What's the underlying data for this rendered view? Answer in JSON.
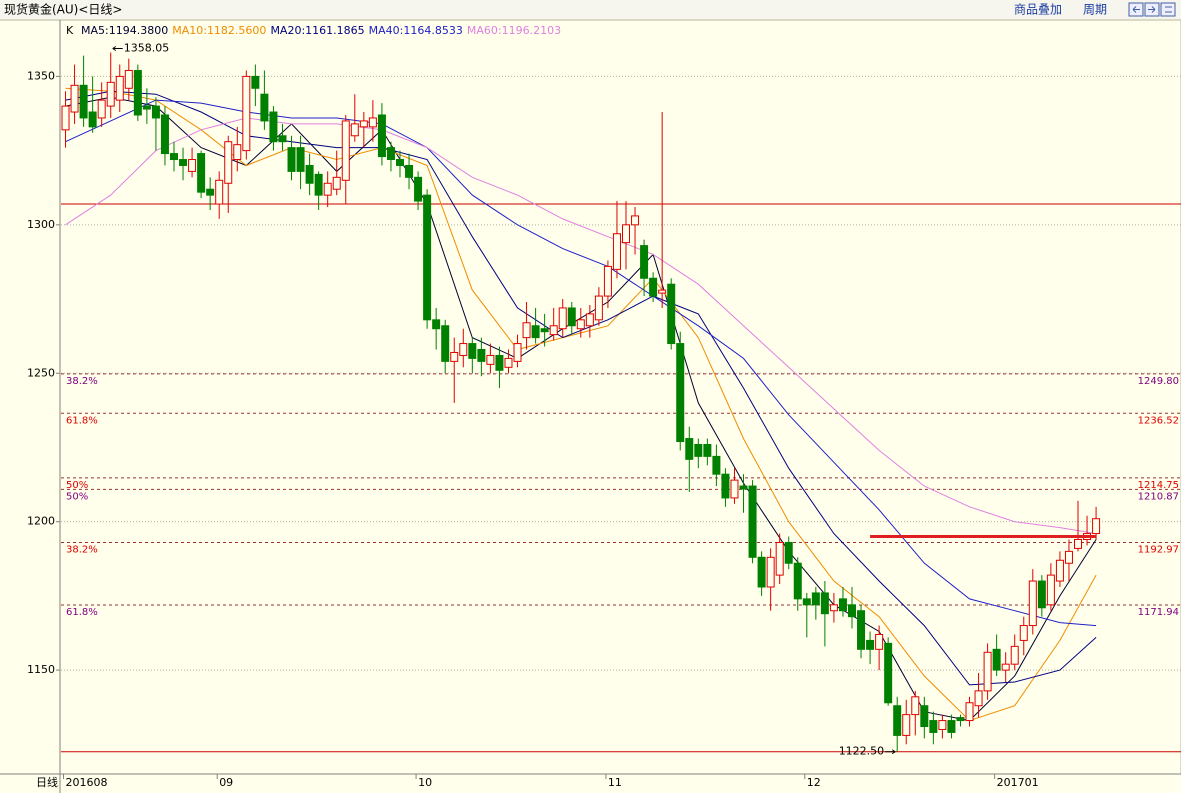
{
  "toolbar": {
    "title": "现货黄金(AU)<日线>",
    "buttons": [
      "商品叠加",
      "周期"
    ]
  },
  "chart_data": {
    "type": "candlestick",
    "k_label": "K",
    "period_label": "日线",
    "categories": [
      "201608",
      null,
      null,
      null,
      null,
      null,
      null,
      null,
      null,
      null,
      null,
      null,
      null,
      null,
      null,
      null,
      null,
      "09",
      null,
      null,
      null,
      null,
      null,
      null,
      null,
      null,
      null,
      null,
      null,
      null,
      null,
      null,
      null,
      null,
      null,
      null,
      null,
      null,
      null,
      "10",
      null,
      null,
      null,
      null,
      null,
      null,
      null,
      null,
      null,
      null,
      null,
      null,
      null,
      null,
      null,
      null,
      null,
      null,
      null,
      null,
      "11",
      null,
      null,
      null,
      null,
      null,
      null,
      null,
      null,
      null,
      null,
      null,
      null,
      null,
      null,
      null,
      null,
      null,
      null,
      null,
      null,
      null,
      "12",
      null,
      null,
      null,
      null,
      null,
      null,
      null,
      null,
      null,
      null,
      null,
      null,
      null,
      null,
      null,
      null,
      null,
      null,
      null,
      null,
      "201701",
      null,
      null,
      null,
      null,
      null,
      null,
      null,
      null,
      null,
      null,
      null
    ],
    "open": [
      1332,
      1338,
      1347,
      1338,
      1336,
      1340,
      1342,
      1346,
      1352,
      1340,
      1340,
      1337,
      1324,
      1322,
      1318,
      1324,
      1312,
      1307,
      1314,
      1322,
      1325,
      1350,
      1344,
      1338,
      1330,
      1326,
      1326,
      1320,
      1317,
      1310,
      1312,
      1315,
      1330,
      1333,
      1333,
      1337,
      1326,
      1322,
      1320,
      1316,
      1310,
      1268,
      1266,
      1254,
      1256,
      1260,
      1258,
      1253,
      1256,
      1252,
      1254,
      1262,
      1266,
      1265,
      1263,
      1265,
      1272,
      1265,
      1266,
      1268,
      1276,
      1285,
      1294,
      1300,
      1293,
      1282,
      1277,
      1280,
      1260,
      1228,
      1226,
      1226,
      1222,
      1216,
      1208,
      1212,
      1212,
      1188,
      1178,
      1182,
      1193,
      1186,
      1174,
      1176,
      1176,
      1170,
      1174,
      1172,
      1170,
      1160,
      1157,
      1159,
      1138,
      1128,
      1135,
      1138,
      1133,
      1130,
      1133,
      1134,
      1133,
      1138,
      1143,
      1157,
      1150,
      1152,
      1160,
      1165,
      1180,
      1172,
      1180,
      1186,
      1191,
      1194,
      1196
    ],
    "high": [
      1345,
      1354,
      1357,
      1350,
      1348,
      1358.05,
      1354,
      1356,
      1354,
      1346,
      1343,
      1340,
      1328,
      1326,
      1326,
      1325,
      1316,
      1318,
      1330,
      1333,
      1352,
      1354,
      1352,
      1340,
      1334,
      1330,
      1330,
      1324,
      1318,
      1318,
      1325,
      1337,
      1344,
      1338,
      1342,
      1341,
      1328,
      1325,
      1324,
      1318,
      1312,
      1272,
      1268,
      1262,
      1265,
      1262,
      1262,
      1260,
      1259,
      1258,
      1263,
      1274,
      1272,
      1270,
      1272,
      1275,
      1274,
      1272,
      1273,
      1279,
      1288,
      1308,
      1308,
      1306,
      1295,
      1284,
      1338,
      1282,
      1264,
      1232,
      1228,
      1228,
      1226,
      1218,
      1218,
      1216,
      1214,
      1190,
      1191,
      1196,
      1195,
      1188,
      1176,
      1178,
      1180,
      1176,
      1178,
      1178,
      1172,
      1163,
      1165,
      1161,
      1141,
      1140,
      1143,
      1141,
      1136,
      1135,
      1135,
      1135,
      1141,
      1149,
      1159,
      1162,
      1156,
      1162,
      1168,
      1184,
      1182,
      1186,
      1190,
      1194,
      1207,
      1202,
      1205
    ],
    "low": [
      1326,
      1334,
      1333,
      1331,
      1333,
      1336,
      1338,
      1342,
      1335,
      1334,
      1325,
      1320,
      1318,
      1315,
      1316,
      1309,
      1305,
      1302,
      1304,
      1318,
      1322,
      1340,
      1332,
      1325,
      1325,
      1315,
      1312,
      1310,
      1305,
      1306,
      1310,
      1307,
      1328,
      1326,
      1328,
      1320,
      1318,
      1316,
      1312,
      1305,
      1265,
      1258,
      1250,
      1240,
      1252,
      1250,
      1249,
      1250,
      1245,
      1250,
      1252,
      1258,
      1260,
      1259,
      1261,
      1262,
      1263,
      1262,
      1262,
      1266,
      1272,
      1282,
      1285,
      1290,
      1276,
      1274,
      1272,
      1258,
      1224,
      1210,
      1218,
      1219,
      1212,
      1205,
      1206,
      1203,
      1186,
      1175,
      1170,
      1179,
      1184,
      1170,
      1161,
      1167,
      1158,
      1166,
      1168,
      1164,
      1154,
      1152,
      1150,
      1138,
      1122.5,
      1125,
      1128,
      1127,
      1125,
      1127,
      1127,
      1131,
      1131,
      1134,
      1140,
      1148,
      1146,
      1150,
      1155,
      1162,
      1168,
      1170,
      1178,
      1180,
      1190,
      1192,
      1194
    ],
    "close": [
      1340,
      1347,
      1336,
      1333,
      1342,
      1348,
      1350,
      1352,
      1337,
      1339,
      1336,
      1324,
      1322,
      1320,
      1322,
      1311,
      1310,
      1315,
      1328,
      1327,
      1350,
      1346,
      1335,
      1328,
      1328,
      1318,
      1318,
      1314,
      1310,
      1314,
      1316,
      1335,
      1334,
      1335,
      1336,
      1323,
      1322,
      1320,
      1316,
      1308,
      1268,
      1265,
      1254,
      1257,
      1260,
      1255,
      1254,
      1256,
      1251,
      1255,
      1260,
      1267,
      1262,
      1264,
      1266,
      1272,
      1266,
      1268,
      1270,
      1276,
      1286,
      1297,
      1300,
      1303,
      1282,
      1276,
      1278,
      1260,
      1227,
      1221,
      1222,
      1222,
      1216,
      1208,
      1214,
      1211,
      1188,
      1178,
      1188,
      1193,
      1186,
      1174,
      1172,
      1172,
      1169,
      1172,
      1170,
      1168,
      1157,
      1157,
      1162,
      1139,
      1128,
      1135,
      1141,
      1131,
      1129,
      1133,
      1129,
      1133,
      1139,
      1143,
      1156,
      1150,
      1152,
      1158,
      1165,
      1180,
      1171,
      1182,
      1187,
      1190,
      1194,
      1196,
      1201
    ],
    "up_color": "#e00000",
    "down_color": "#008000",
    "ylim": [
      1115,
      1369
    ],
    "yticks": [
      1150,
      1200,
      1250,
      1300,
      1350
    ],
    "grid": true,
    "ma_series": [
      {
        "name": "MA5:1194.3800",
        "color": "#000033",
        "x": [
          0,
          5,
          10,
          15,
          20,
          25,
          30,
          35,
          40,
          45,
          50,
          55,
          60,
          65,
          70,
          75,
          80,
          85,
          90,
          95,
          100,
          105,
          110,
          114
        ],
        "values": [
          1340,
          1343,
          1340,
          1326,
          1320,
          1334,
          1318,
          1332,
          1307,
          1262,
          1255,
          1265,
          1274,
          1290,
          1240,
          1213,
          1190,
          1172,
          1163,
          1136,
          1133,
          1148,
          1175,
          1194
        ]
      },
      {
        "name": "MA10:1182.5600",
        "color": "#f08c00",
        "x": [
          0,
          5,
          10,
          15,
          20,
          25,
          30,
          35,
          40,
          45,
          50,
          55,
          60,
          65,
          70,
          75,
          80,
          85,
          90,
          95,
          100,
          105,
          110,
          114
        ],
        "values": [
          1346,
          1345,
          1342,
          1332,
          1320,
          1326,
          1322,
          1326,
          1320,
          1278,
          1258,
          1262,
          1266,
          1282,
          1262,
          1228,
          1200,
          1180,
          1168,
          1148,
          1133,
          1138,
          1160,
          1182
        ]
      },
      {
        "name": "MA20:1161.1865",
        "color": "#000080",
        "x": [
          0,
          5,
          10,
          15,
          20,
          25,
          30,
          35,
          40,
          45,
          50,
          55,
          60,
          65,
          70,
          75,
          80,
          85,
          90,
          95,
          100,
          105,
          110,
          114
        ],
        "values": [
          1342,
          1345,
          1344,
          1338,
          1330,
          1328,
          1326,
          1326,
          1322,
          1296,
          1272,
          1262,
          1268,
          1276,
          1270,
          1245,
          1218,
          1196,
          1180,
          1165,
          1145,
          1146,
          1150,
          1161
        ]
      },
      {
        "name": "MA40:1164.8533",
        "color": "#2020c8",
        "x": [
          0,
          5,
          10,
          15,
          20,
          25,
          30,
          35,
          40,
          45,
          50,
          55,
          60,
          65,
          70,
          75,
          80,
          85,
          90,
          95,
          100,
          105,
          110,
          114
        ],
        "values": [
          1328,
          1335,
          1342,
          1341,
          1338,
          1336,
          1336,
          1334,
          1326,
          1310,
          1300,
          1292,
          1286,
          1276,
          1266,
          1255,
          1236,
          1220,
          1204,
          1186,
          1174,
          1170,
          1166,
          1165
        ]
      },
      {
        "name": "MA60:1196.2103",
        "color": "#e080e0",
        "x": [
          0,
          5,
          10,
          15,
          20,
          25,
          30,
          35,
          40,
          45,
          50,
          55,
          60,
          65,
          70,
          75,
          80,
          85,
          90,
          95,
          100,
          105,
          110,
          114
        ],
        "values": [
          1300,
          1310,
          1325,
          1332,
          1336,
          1334,
          1334,
          1332,
          1326,
          1316,
          1310,
          1302,
          1296,
          1290,
          1280,
          1266,
          1252,
          1238,
          1224,
          1212,
          1205,
          1200,
          1198,
          1196
        ]
      }
    ],
    "levels": [
      {
        "value": 1249.8,
        "label": "1249.80",
        "pct": "38.2%",
        "color": "#800080"
      },
      {
        "value": 1236.52,
        "label": "1236.52",
        "pct": "61.8%",
        "color": "#e00000"
      },
      {
        "value": 1214.75,
        "label": "1214.75",
        "pct": "50%",
        "color": "#e00000"
      },
      {
        "value": 1210.87,
        "label": "1210.87",
        "pct": "50%",
        "color": "#800080"
      },
      {
        "value": 1192.97,
        "label": "1192.97",
        "pct": "38.2%",
        "color": "#e00000"
      },
      {
        "value": 1171.94,
        "label": "1171.94",
        "pct": "61.8%",
        "color": "#800080"
      }
    ],
    "level_line_color": "#993333",
    "support_lines": [
      {
        "value": 1307,
        "color": "#cc0000"
      },
      {
        "value": 1122.5,
        "color": "#cc0000"
      }
    ],
    "segment": {
      "value": 1195,
      "from": 89,
      "to": 114,
      "color": "#e02020"
    },
    "annotations": [
      {
        "index": 5,
        "value": 1358.05,
        "label": "1358.05",
        "side": "right"
      },
      {
        "index": 92,
        "value": 1122.5,
        "label": "1122.50",
        "side": "left"
      }
    ]
  }
}
